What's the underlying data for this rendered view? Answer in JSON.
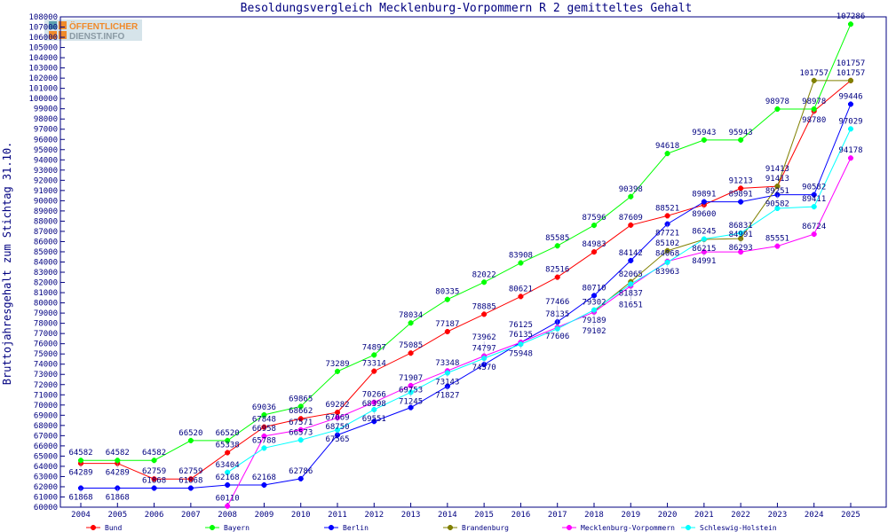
{
  "chart_data": {
    "type": "line",
    "title": "Besoldungsvergleich Mecklenburg-Vorpommern R 2 gemitteltes Gehalt",
    "xlabel": "",
    "ylabel": "Bruttojahresgehalt zum Stichtag 31.10.",
    "ylim": [
      60000,
      108000
    ],
    "ytick_step": 1000,
    "grid": false,
    "legend_placement": "bottom",
    "x": [
      "2004",
      "2005",
      "2006",
      "2007",
      "2008",
      "2009",
      "2010",
      "2011",
      "2012",
      "2013",
      "2014",
      "2015",
      "2016",
      "2017",
      "2018",
      "2019",
      "2020",
      "2021",
      "2022",
      "2023",
      "2024",
      "2025"
    ],
    "series": [
      {
        "name": "Bund",
        "color": "#ff0000",
        "values": [
          64289,
          64289,
          62759,
          62759,
          65338,
          67848,
          68662,
          69282,
          73314,
          75085,
          77187,
          78885,
          80621,
          82516,
          84983,
          87609,
          88521,
          89600,
          91213,
          91413,
          98780,
          101757
        ]
      },
      {
        "name": "Bayern",
        "color": "#00ff00",
        "values": [
          64582,
          64582,
          64582,
          66520,
          66520,
          69036,
          69865,
          73289,
          74897,
          78034,
          80335,
          82022,
          83908,
          85585,
          87596,
          90398,
          94618,
          95943,
          95943,
          98978,
          98978,
          107286
        ]
      },
      {
        "name": "Berlin",
        "color": "#0000ff",
        "values": [
          61868,
          61868,
          61868,
          61868,
          62168,
          62168,
          62786,
          67069,
          68398,
          69753,
          71827,
          73962,
          76125,
          78135,
          80710,
          84142,
          87721,
          89891,
          89891,
          90582,
          90582,
          99446
        ]
      },
      {
        "name": "Brandenburg",
        "color": "#808000",
        "values": [
          null,
          null,
          null,
          null,
          null,
          null,
          null,
          null,
          null,
          null,
          null,
          null,
          null,
          null,
          79189,
          82065,
          85102,
          86215,
          86293,
          91413,
          101757,
          101757
        ]
      },
      {
        "name": "Mecklenburg-Vorpommern",
        "color": "#ff00ff",
        "values": [
          null,
          null,
          null,
          null,
          60110,
          66958,
          67571,
          68750,
          70266,
          71907,
          73348,
          74797,
          76135,
          77606,
          79102,
          81651,
          84068,
          84991,
          84991,
          85551,
          86724,
          94178
        ]
      },
      {
        "name": "Schleswig-Holstein",
        "color": "#00ffff",
        "values": [
          null,
          null,
          null,
          null,
          63404,
          65788,
          66573,
          67565,
          69551,
          71245,
          73143,
          74570,
          75948,
          77466,
          79302,
          81837,
          83963,
          86245,
          86831,
          89251,
          89411,
          97029
        ]
      }
    ]
  },
  "logo": {
    "line1": "ÖFFENTLICHER",
    "line2": "DIENST.INFO"
  }
}
